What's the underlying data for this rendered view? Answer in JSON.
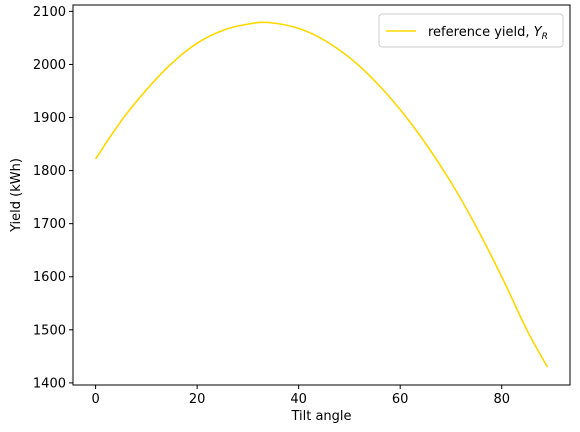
{
  "chart_data": {
    "type": "line",
    "title": "",
    "xlabel": "Tilt angle",
    "ylabel": "Yield (kWh)",
    "xlim": [
      -4.45,
      93.45
    ],
    "ylim": [
      1396,
      2112
    ],
    "xticks": [
      0,
      20,
      40,
      60,
      80
    ],
    "yticks": [
      1400,
      1500,
      1600,
      1700,
      1800,
      1900,
      2000,
      2100
    ],
    "grid": false,
    "legend_position": "top-right",
    "series": [
      {
        "name": "reference yield, Y_R",
        "name_main": "reference yield, ",
        "name_symbol": "Y",
        "name_subscript": "R",
        "color": "#ffd700",
        "x": [
          0,
          5,
          10,
          15,
          20,
          25,
          30,
          34,
          40,
          45,
          50,
          55,
          60,
          65,
          70,
          75,
          80,
          85,
          89
        ],
        "y": [
          1822,
          1893,
          1952,
          2002,
          2040,
          2064,
          2076,
          2079,
          2068,
          2046,
          2013,
          1969,
          1915,
          1851,
          1778,
          1694,
          1600,
          1499,
          1430
        ]
      }
    ]
  }
}
